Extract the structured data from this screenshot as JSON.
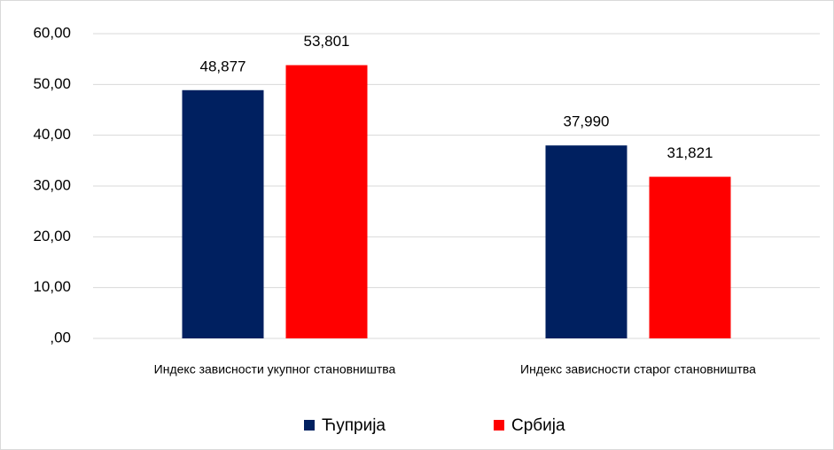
{
  "chart_data": {
    "type": "bar",
    "categories": [
      "Индекс зависности укупног становништва",
      "Индекс зависности старог становништва"
    ],
    "series": [
      {
        "name": "Ћуприја",
        "color": "#002060",
        "values": [
          48.877,
          37.99
        ],
        "value_labels": [
          "48,877",
          "37,990"
        ]
      },
      {
        "name": "Србија",
        "color": "#ff0000",
        "values": [
          53.801,
          31.821
        ],
        "value_labels": [
          "53,801",
          "31,821"
        ]
      }
    ],
    "ylim": [
      0,
      60
    ],
    "yticks": [
      {
        "value": 0,
        "label": ",00"
      },
      {
        "value": 10,
        "label": "10,00"
      },
      {
        "value": 20,
        "label": "20,00"
      },
      {
        "value": 30,
        "label": "30,00"
      },
      {
        "value": 40,
        "label": "40,00"
      },
      {
        "value": 50,
        "label": "50,00"
      },
      {
        "value": 60,
        "label": "60,00"
      }
    ],
    "grid": true,
    "legend": "bottom"
  }
}
